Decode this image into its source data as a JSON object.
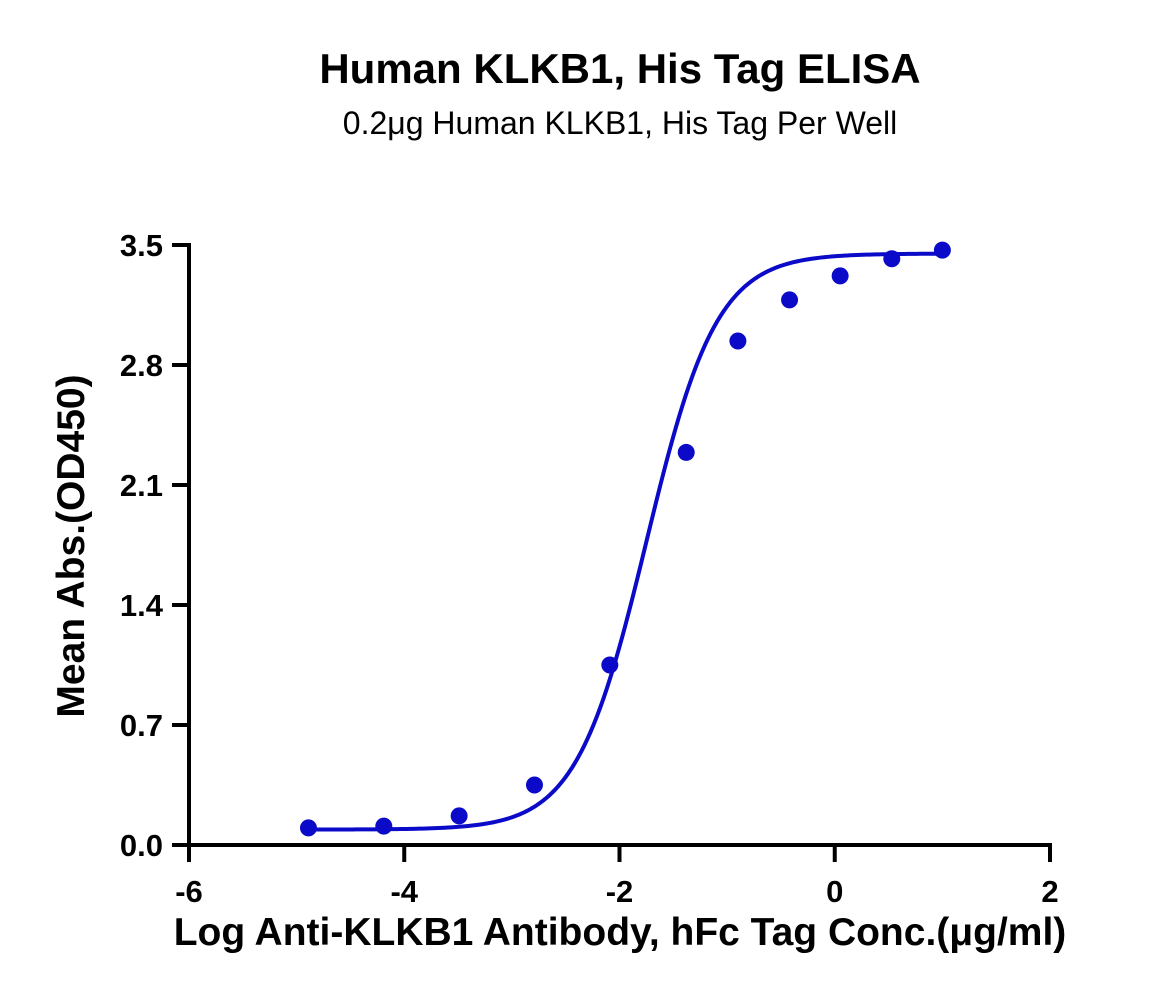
{
  "chart_data": {
    "type": "scatter",
    "title": "Human KLKB1, His Tag ELISA",
    "subtitle": "0.2μg Human KLKB1, His Tag Per Well",
    "xlabel": "Log Anti-KLKB1 Antibody, hFc Tag Conc.(μg/ml)",
    "ylabel": "Mean Abs.(OD450)",
    "xlim": [
      -6,
      2
    ],
    "ylim": [
      0.0,
      3.5
    ],
    "x_ticks": [
      -6,
      -4,
      -2,
      0,
      2
    ],
    "x_tick_labels": [
      "-6",
      "-4",
      "-2",
      "0",
      "2"
    ],
    "y_ticks": [
      0.0,
      0.7,
      1.4,
      2.1,
      2.8,
      3.5
    ],
    "y_tick_labels": [
      "0.0",
      "0.7",
      "1.4",
      "2.1",
      "2.8",
      "3.5"
    ],
    "grid": false,
    "legend": "none",
    "series": [
      {
        "color": "#0A0AC8",
        "points": [
          {
            "x": -4.89,
            "y": 0.1
          },
          {
            "x": -4.19,
            "y": 0.11
          },
          {
            "x": -3.49,
            "y": 0.17
          },
          {
            "x": -2.79,
            "y": 0.35
          },
          {
            "x": -2.09,
            "y": 1.05
          },
          {
            "x": -1.38,
            "y": 2.29
          },
          {
            "x": -0.9,
            "y": 2.94
          },
          {
            "x": -0.42,
            "y": 3.18
          },
          {
            "x": 0.05,
            "y": 3.32
          },
          {
            "x": 0.53,
            "y": 3.42
          },
          {
            "x": 1.0,
            "y": 3.47
          }
        ],
        "fit": {
          "model": "4PL",
          "bottom": 0.09,
          "top": 3.45,
          "logEC50": -1.75,
          "hillslope": 1.33
        }
      }
    ]
  }
}
